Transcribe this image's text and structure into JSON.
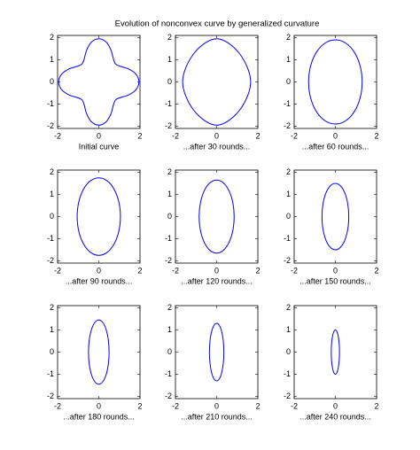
{
  "title": "Evolution of nonconvex curve by generalized curvature",
  "chart_data": [
    {
      "type": "line",
      "xlabel": "Initial curve",
      "color": "#0000ff",
      "xlim": [
        -2,
        2
      ],
      "ylim": [
        -2.1,
        2.1
      ],
      "xticks": [
        -2,
        0,
        2
      ],
      "yticks": [
        -2,
        -1,
        0,
        1,
        2
      ],
      "x": [
        1.95,
        1.798,
        1.432,
        1.053,
        0.813,
        0.704,
        0.593,
        0.358,
        0,
        -0.358,
        -0.593,
        -0.704,
        -0.813,
        -1.053,
        -1.432,
        -1.798,
        -1.95,
        -1.798,
        -1.432,
        -1.053,
        -0.813,
        -0.704,
        -0.593,
        -0.358,
        0,
        0.358,
        0.593,
        0.704,
        0.813,
        1.053,
        1.432,
        1.798
      ],
      "values": [
        0,
        0.358,
        0.593,
        0.704,
        0.813,
        1.053,
        1.432,
        1.798,
        1.95,
        1.798,
        1.432,
        1.053,
        0.813,
        0.704,
        0.593,
        0.358,
        0,
        -0.358,
        -0.593,
        -0.704,
        -0.813,
        -1.053,
        -1.432,
        -1.798,
        -1.95,
        -1.798,
        -1.432,
        -1.053,
        -0.813,
        -0.704,
        -0.593,
        -0.358
      ]
    },
    {
      "type": "line",
      "xlabel": "...after 30 rounds...",
      "color": "#0000ff",
      "xlim": [
        -2,
        2
      ],
      "ylim": [
        -2.1,
        2.1
      ],
      "xticks": [
        -2,
        0,
        2
      ],
      "yticks": [
        -2,
        -1,
        0,
        1,
        2
      ],
      "x": [
        1.65,
        1.503,
        1.096,
        0.531,
        0,
        -0.531,
        -1.096,
        -1.503,
        -1.65,
        -1.503,
        -1.096,
        -0.531,
        0,
        0.531,
        1.096,
        1.503
      ],
      "values": [
        0,
        0.628,
        1.295,
        1.776,
        1.95,
        1.776,
        1.295,
        0.628,
        0,
        -0.628,
        -1.295,
        -1.776,
        -1.95,
        -1.776,
        -1.295,
        -0.628
      ]
    },
    {
      "type": "line",
      "xlabel": "...after 60 rounds...",
      "color": "#0000ff",
      "xlim": [
        -2,
        2
      ],
      "ylim": [
        -2.1,
        2.1
      ],
      "xticks": [
        -2,
        0,
        2
      ],
      "yticks": [
        -2,
        -1,
        0,
        1,
        2
      ],
      "x": [
        1.3,
        1.201,
        0.919,
        0.498,
        0,
        -0.498,
        -0.919,
        -1.201,
        -1.3,
        -1.201,
        -0.919,
        -0.498,
        0,
        0.498,
        0.919,
        1.201
      ],
      "values": [
        0,
        0.727,
        1.343,
        1.755,
        1.9,
        1.755,
        1.343,
        0.727,
        0,
        -0.727,
        -1.343,
        -1.755,
        -1.9,
        -1.755,
        -1.343,
        -0.727
      ]
    },
    {
      "type": "line",
      "xlabel": "...after 90 rounds...",
      "color": "#0000ff",
      "xlim": [
        -2,
        2
      ],
      "ylim": [
        -2.1,
        2.1
      ],
      "xticks": [
        -2,
        0,
        2
      ],
      "yticks": [
        -2,
        -1,
        0,
        1,
        2
      ],
      "x": [
        1.05,
        0.97,
        0.742,
        0.402,
        0,
        -0.402,
        -0.742,
        -0.97,
        -1.05,
        -0.97,
        -0.742,
        -0.402,
        0,
        0.402,
        0.742,
        0.97
      ],
      "values": [
        0,
        0.67,
        1.237,
        1.617,
        1.75,
        1.617,
        1.237,
        0.67,
        0,
        -0.67,
        -1.237,
        -1.617,
        -1.75,
        -1.617,
        -1.237,
        -0.67
      ]
    },
    {
      "type": "line",
      "xlabel": "...after 120 rounds...",
      "color": "#0000ff",
      "xlim": [
        -2,
        2
      ],
      "ylim": [
        -2.1,
        2.1
      ],
      "xticks": [
        -2,
        0,
        2
      ],
      "yticks": [
        -2,
        -1,
        0,
        1,
        2
      ],
      "x": [
        0.85,
        0.785,
        0.601,
        0.325,
        0,
        -0.325,
        -0.601,
        -0.785,
        -0.85,
        -0.785,
        -0.601,
        -0.325,
        0,
        0.325,
        0.601,
        0.785
      ],
      "values": [
        0,
        0.631,
        1.167,
        1.524,
        1.65,
        1.524,
        1.167,
        0.631,
        0,
        -0.631,
        -1.167,
        -1.524,
        -1.65,
        -1.524,
        -1.167,
        -0.631
      ]
    },
    {
      "type": "line",
      "xlabel": "...after 150 rounds...",
      "color": "#0000ff",
      "xlim": [
        -2,
        2
      ],
      "ylim": [
        -2.1,
        2.1
      ],
      "xticks": [
        -2,
        0,
        2
      ],
      "yticks": [
        -2,
        -1,
        0,
        1,
        2
      ],
      "x": [
        0.65,
        0.601,
        0.46,
        0.249,
        0,
        -0.249,
        -0.46,
        -0.601,
        -0.65,
        -0.601,
        -0.46,
        -0.249,
        0,
        0.249,
        0.46,
        0.601
      ],
      "values": [
        0,
        0.574,
        1.061,
        1.386,
        1.5,
        1.386,
        1.061,
        0.574,
        0,
        -0.574,
        -1.061,
        -1.386,
        -1.5,
        -1.386,
        -1.061,
        -0.574
      ]
    },
    {
      "type": "line",
      "xlabel": "...after 180 rounds...",
      "color": "#0000ff",
      "xlim": [
        -2,
        2
      ],
      "ylim": [
        -2.1,
        2.1
      ],
      "xticks": [
        -2,
        0,
        2
      ],
      "yticks": [
        -2,
        -1,
        0,
        1,
        2
      ],
      "x": [
        0.5,
        0.462,
        0.354,
        0.191,
        0,
        -0.191,
        -0.354,
        -0.462,
        -0.5,
        -0.462,
        -0.354,
        -0.191,
        0,
        0.191,
        0.354,
        0.462
      ],
      "values": [
        0,
        0.555,
        1.025,
        1.34,
        1.45,
        1.34,
        1.025,
        0.555,
        0,
        -0.555,
        -1.025,
        -1.34,
        -1.45,
        -1.34,
        -1.025,
        -0.555
      ]
    },
    {
      "type": "line",
      "xlabel": "...after 210 rounds...",
      "color": "#0000ff",
      "xlim": [
        -2,
        2
      ],
      "ylim": [
        -2.1,
        2.1
      ],
      "xticks": [
        -2,
        0,
        2
      ],
      "yticks": [
        -2,
        -1,
        0,
        1,
        2
      ],
      "x": [
        0.35,
        0.323,
        0.247,
        0.134,
        0,
        -0.134,
        -0.247,
        -0.323,
        -0.35,
        -0.323,
        -0.247,
        -0.134,
        0,
        0.134,
        0.247,
        0.323
      ],
      "values": [
        0,
        0.498,
        0.919,
        1.201,
        1.3,
        1.201,
        0.919,
        0.498,
        0,
        -0.498,
        -0.919,
        -1.201,
        -1.3,
        -1.201,
        -0.919,
        -0.498
      ]
    },
    {
      "type": "line",
      "xlabel": "...after 240 rounds...",
      "color": "#0000ff",
      "xlim": [
        -2,
        2
      ],
      "ylim": [
        -2.1,
        2.1
      ],
      "xticks": [
        -2,
        0,
        2
      ],
      "yticks": [
        -2,
        -1,
        0,
        1,
        2
      ],
      "x": [
        0.2,
        0.185,
        0.141,
        0.077,
        0,
        -0.077,
        -0.141,
        -0.185,
        -0.2,
        -0.185,
        -0.141,
        -0.077,
        0,
        0.077,
        0.141,
        0.185
      ],
      "values": [
        0,
        0.383,
        0.707,
        0.924,
        1,
        0.924,
        0.707,
        0.383,
        0,
        -0.383,
        -0.707,
        -0.924,
        -1,
        -0.924,
        -0.707,
        -0.383
      ]
    }
  ]
}
